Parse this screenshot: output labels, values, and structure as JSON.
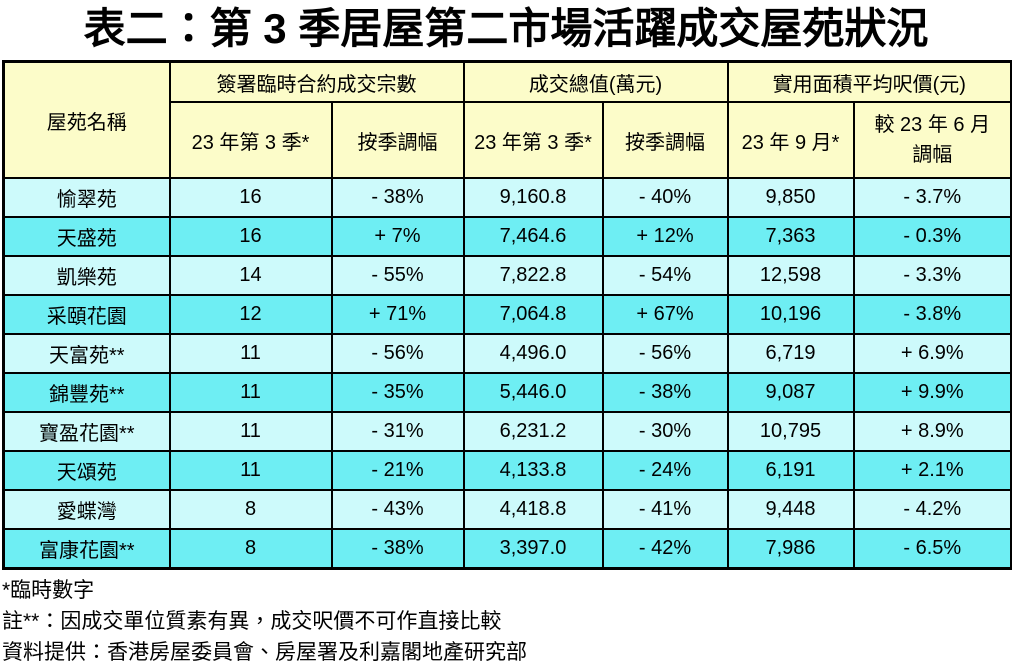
{
  "title": "表二：第 3 季居屋第二市場活躍成交屋苑狀況",
  "table": {
    "corner_header": "屋苑名稱",
    "groups": [
      {
        "label": "簽署臨時合約成交宗數",
        "sub1": "23 年第 3 季*",
        "sub2": "按季調幅"
      },
      {
        "label": "成交總值(萬元)",
        "sub1": "23 年第 3 季*",
        "sub2": "按季調幅"
      },
      {
        "label": "實用面積平均呎價(元)",
        "sub1": "23 年 9 月*",
        "sub2_line1": "較 23 年 6 月",
        "sub2_line2": "調幅"
      }
    ],
    "rows": [
      [
        "愉翠苑",
        "16",
        "- 38%",
        "9,160.8",
        "- 40%",
        "9,850",
        "- 3.7%"
      ],
      [
        "天盛苑",
        "16",
        "+ 7%",
        "7,464.6",
        "+ 12%",
        "7,363",
        "- 0.3%"
      ],
      [
        "凱樂苑",
        "14",
        "- 55%",
        "7,822.8",
        "- 54%",
        "12,598",
        "- 3.3%"
      ],
      [
        "采頤花園",
        "12",
        "+ 71%",
        "7,064.8",
        "+ 67%",
        "10,196",
        "- 3.8%"
      ],
      [
        "天富苑**",
        "11",
        "- 56%",
        "4,496.0",
        "- 56%",
        "6,719",
        "+ 6.9%"
      ],
      [
        "錦豐苑**",
        "11",
        "- 35%",
        "5,446.0",
        "- 38%",
        "9,087",
        "+ 9.9%"
      ],
      [
        "寶盈花園**",
        "11",
        "- 31%",
        "6,231.2",
        "- 30%",
        "10,795",
        "+ 8.9%"
      ],
      [
        "天頌苑",
        "11",
        "- 21%",
        "4,133.8",
        "- 24%",
        "6,191",
        "+ 2.1%"
      ],
      [
        "愛蝶灣",
        "8",
        "- 43%",
        "4,418.8",
        "- 41%",
        "9,448",
        "- 4.2%"
      ],
      [
        "富康花園**",
        "8",
        "- 38%",
        "3,397.0",
        "- 42%",
        "7,986",
        "- 6.5%"
      ]
    ]
  },
  "footnotes": [
    "*臨時數字",
    "註**：因成交單位質素有異，成交呎價不可作直接比較",
    "資料提供：香港房屋委員會、房屋署及利嘉閣地產研究部"
  ],
  "colors": {
    "header_bg": "#FCFCC9",
    "row_odd_bg": "#CDFAFB",
    "row_even_bg": "#6EEEF3",
    "border": "#000000",
    "text": "#000000"
  }
}
